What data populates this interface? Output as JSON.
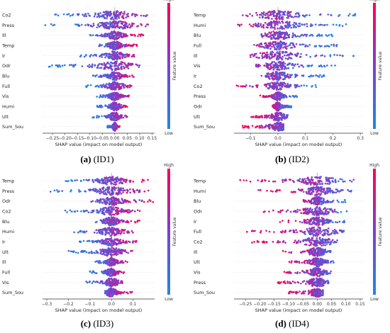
{
  "colors": {
    "low": "#1e88e5",
    "mid": "#7b3fd1",
    "high": "#ff0052",
    "zero_line": "#999999"
  },
  "colorbar": {
    "high_label": "High",
    "low_label": "Low",
    "title": "Feature value"
  },
  "chart_data": [
    {
      "type": "scatter",
      "caption_bold": "(a)",
      "caption_rest": " (ID1)",
      "xlabel": "SHAP value (impact on model output)",
      "xticks": [
        -0.25,
        -0.2,
        -0.15,
        -0.1,
        -0.05,
        0.0,
        0.05,
        0.1,
        0.15
      ],
      "tick_labels": [
        "−0.25",
        "−0.20",
        "−0.15",
        "−0.10",
        "−0.05",
        "0.00",
        "0.05",
        "0.10",
        "0.15"
      ],
      "xlim": [
        -0.29,
        0.16
      ],
      "features": [
        {
          "name": "Co2",
          "min": -0.26,
          "max": 0.13
        },
        {
          "name": "Press",
          "min": -0.28,
          "max": 0.14
        },
        {
          "name": "Ill",
          "min": -0.1,
          "max": 0.12
        },
        {
          "name": "Temp",
          "min": -0.07,
          "max": 0.1
        },
        {
          "name": "Ir",
          "min": -0.14,
          "max": 0.08
        },
        {
          "name": "Odr",
          "min": -0.27,
          "max": 0.1
        },
        {
          "name": "Blu",
          "min": -0.1,
          "max": 0.08
        },
        {
          "name": "Full",
          "min": -0.13,
          "max": 0.07
        },
        {
          "name": "Vis",
          "min": -0.08,
          "max": 0.06
        },
        {
          "name": "Humi",
          "min": -0.08,
          "max": 0.05
        },
        {
          "name": "Ult",
          "min": -0.09,
          "max": 0.05
        },
        {
          "name": "Sum_Sou",
          "min": -0.03,
          "max": 0.02
        }
      ]
    },
    {
      "type": "scatter",
      "caption_bold": "(b)",
      "caption_rest": " (ID2)",
      "xlabel": "SHAP value (impact on model output)",
      "xticks": [
        -0.1,
        0.0,
        0.1,
        0.2,
        0.3
      ],
      "tick_labels": [
        "−0.1",
        "0.0",
        "0.1",
        "0.2",
        "0.3"
      ],
      "xlim": [
        -0.16,
        0.31
      ],
      "features": [
        {
          "name": "Temp",
          "min": -0.14,
          "max": 0.3
        },
        {
          "name": "Humi",
          "min": -0.15,
          "max": 0.26
        },
        {
          "name": "Blu",
          "min": -0.06,
          "max": 0.2
        },
        {
          "name": "Full",
          "min": -0.1,
          "max": 0.22
        },
        {
          "name": "Ill",
          "min": -0.1,
          "max": 0.3
        },
        {
          "name": "Vis",
          "min": -0.08,
          "max": 0.22
        },
        {
          "name": "Ir",
          "min": -0.06,
          "max": 0.17
        },
        {
          "name": "Co2",
          "min": -0.16,
          "max": 0.15
        },
        {
          "name": "Press",
          "min": -0.07,
          "max": 0.07
        },
        {
          "name": "Odr",
          "min": -0.02,
          "max": 0.05
        },
        {
          "name": "Ult",
          "min": -0.1,
          "max": 0.05
        },
        {
          "name": "Sum_Sou",
          "min": -0.13,
          "max": 0.02
        }
      ]
    },
    {
      "type": "scatter",
      "caption_bold": "(c)",
      "caption_rest": " (ID3)",
      "xlabel": "SHAP value (impact on model output)",
      "xticks": [
        -0.3,
        -0.2,
        -0.1,
        0.0,
        0.1
      ],
      "tick_labels": [
        "−0.3",
        "−0.2",
        "−0.1",
        "0.0",
        "0.1"
      ],
      "xlim": [
        -0.32,
        0.2
      ],
      "features": [
        {
          "name": "Temp",
          "min": -0.23,
          "max": 0.17
        },
        {
          "name": "Press",
          "min": -0.3,
          "max": 0.18
        },
        {
          "name": "Odr",
          "min": -0.1,
          "max": 0.2
        },
        {
          "name": "Co2",
          "min": -0.22,
          "max": 0.16
        },
        {
          "name": "Blu",
          "min": -0.08,
          "max": 0.13
        },
        {
          "name": "Humi",
          "min": -0.2,
          "max": 0.12
        },
        {
          "name": "Ir",
          "min": -0.15,
          "max": 0.12
        },
        {
          "name": "Ult",
          "min": -0.2,
          "max": 0.1
        },
        {
          "name": "Ill",
          "min": -0.08,
          "max": 0.08
        },
        {
          "name": "Full",
          "min": -0.1,
          "max": 0.06
        },
        {
          "name": "Vis",
          "min": -0.12,
          "max": 0.05
        },
        {
          "name": "Sum_Sou",
          "min": -0.03,
          "max": 0.1
        }
      ]
    },
    {
      "type": "scatter",
      "caption_bold": "(d)",
      "caption_rest": " (ID4)",
      "xlabel": "SHAP value (impact on model output)",
      "xticks": [
        -0.25,
        -0.2,
        -0.15,
        -0.1,
        -0.05,
        0.0,
        0.05,
        0.1,
        0.15
      ],
      "tick_labels": [
        "−0.25",
        "−0.20",
        "−0.15",
        "−0.10",
        "−0.05",
        "0.00",
        "0.05",
        "0.10",
        "0.15"
      ],
      "xlim": [
        -0.29,
        0.16
      ],
      "features": [
        {
          "name": "Temp",
          "min": -0.27,
          "max": 0.13
        },
        {
          "name": "Humi",
          "min": -0.22,
          "max": 0.12
        },
        {
          "name": "Blu",
          "min": -0.05,
          "max": 0.1
        },
        {
          "name": "Odr",
          "min": -0.2,
          "max": 0.13
        },
        {
          "name": "Ir",
          "min": -0.13,
          "max": 0.1
        },
        {
          "name": "Full",
          "min": -0.25,
          "max": 0.1
        },
        {
          "name": "Co2",
          "min": -0.24,
          "max": 0.07
        },
        {
          "name": "Ill",
          "min": -0.12,
          "max": 0.06
        },
        {
          "name": "Ult",
          "min": -0.1,
          "max": 0.06
        },
        {
          "name": "Vis",
          "min": -0.12,
          "max": 0.05
        },
        {
          "name": "Press",
          "min": -0.15,
          "max": 0.04
        },
        {
          "name": "Sum_Sou",
          "min": -0.1,
          "max": 0.02
        }
      ]
    }
  ]
}
